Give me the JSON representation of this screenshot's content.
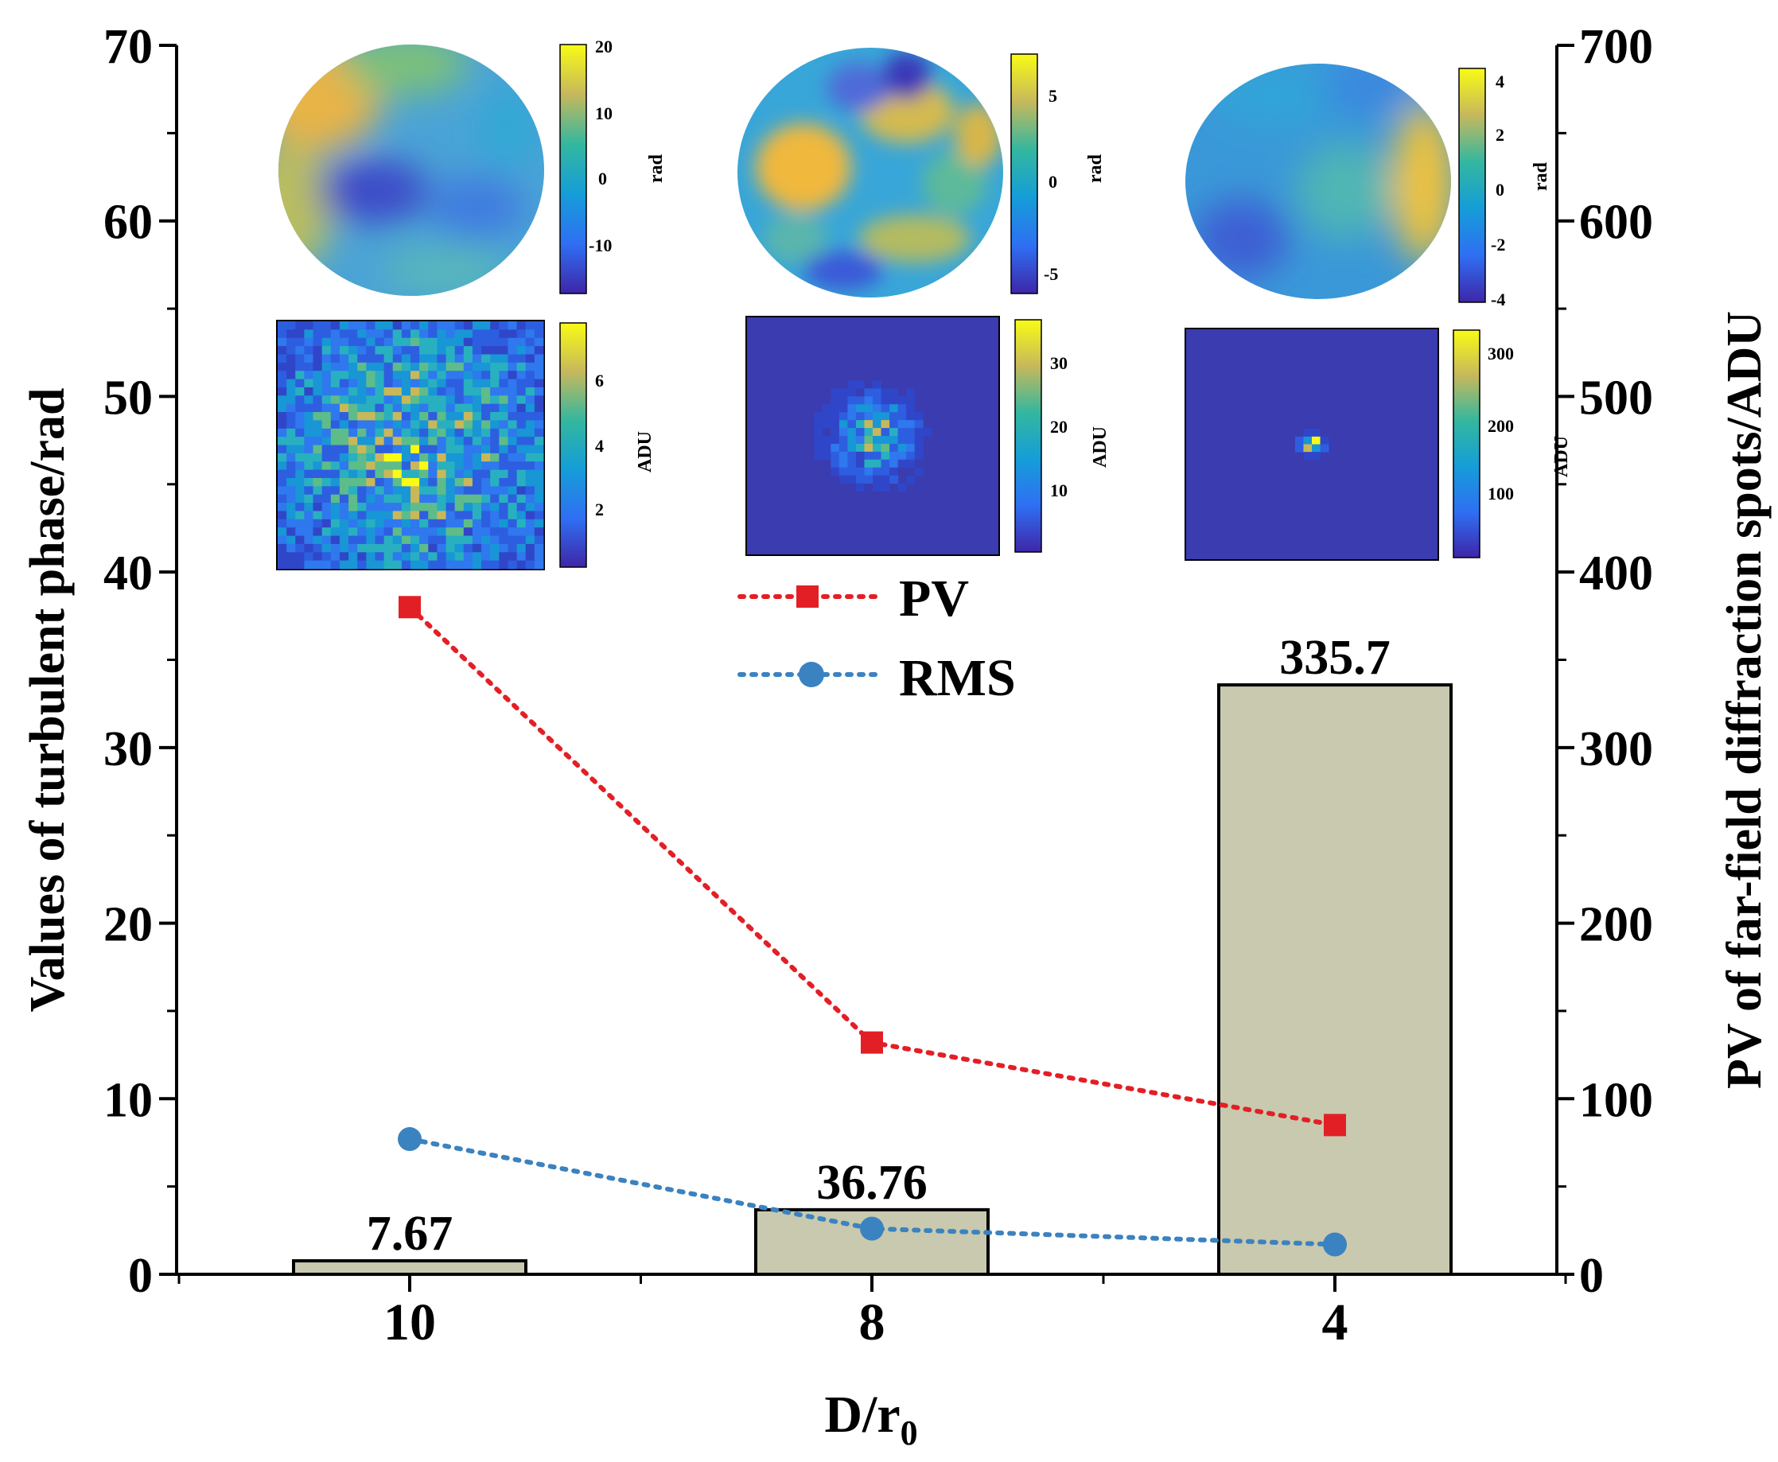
{
  "chart_data": {
    "type": "bar",
    "title": "",
    "xlabel": "D/r",
    "xlabel_subscript": "0",
    "ylabel_left": "Values of turbulent phase/rad",
    "ylabel_right": "PV of far-field diffraction spots/ADU",
    "categories": [
      "10",
      "8",
      "4"
    ],
    "ylim_left": [
      0,
      70
    ],
    "yticks_left": [
      0,
      10,
      20,
      30,
      40,
      50,
      60,
      70
    ],
    "ylim_right": [
      0,
      700
    ],
    "yticks_right": [
      0,
      100,
      200,
      300,
      400,
      500,
      600,
      700
    ],
    "bars": {
      "name": "PV of far-field diffraction spots",
      "axis": "right",
      "values": [
        7.67,
        36.76,
        335.7
      ],
      "labels": [
        "7.67",
        "36.76",
        "335.7"
      ],
      "color": "#c8c9ae"
    },
    "series": [
      {
        "name": "PV",
        "axis": "left",
        "values": [
          38.0,
          13.2,
          8.5
        ],
        "color": "#e31f26",
        "marker": "square",
        "style": "dotted"
      },
      {
        "name": "RMS",
        "axis": "left",
        "values": [
          7.7,
          2.6,
          1.7
        ],
        "color": "#3b82c0",
        "marker": "circle",
        "style": "dotted"
      }
    ],
    "legend_position": "center",
    "insets": {
      "phase_colorbars": [
        {
          "label": "rad",
          "ticks": [
            "20",
            "10",
            "0",
            "-10"
          ]
        },
        {
          "label": "rad",
          "ticks": [
            "5",
            "0",
            "-5"
          ]
        },
        {
          "label": "rad",
          "ticks": [
            "4",
            "2",
            "0",
            "-2",
            "-4"
          ]
        }
      ],
      "spot_colorbars": [
        {
          "label": "ADU",
          "ticks": [
            "6",
            "4",
            "2"
          ]
        },
        {
          "label": "ADU",
          "ticks": [
            "30",
            "20",
            "10"
          ]
        },
        {
          "label": "ADU",
          "ticks": [
            "300",
            "200",
            "100"
          ]
        }
      ]
    }
  }
}
